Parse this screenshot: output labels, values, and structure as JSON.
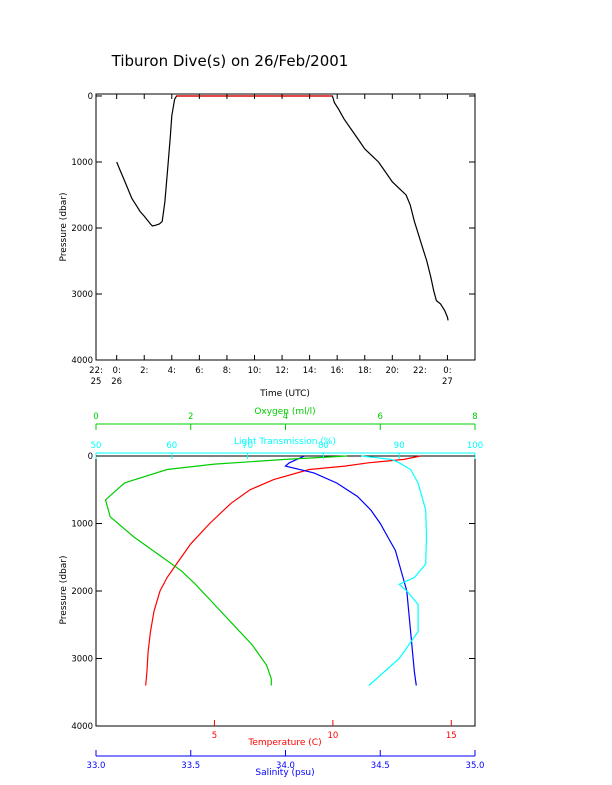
{
  "title": "Tiburon Dive(s) on 26/Feb/2001",
  "colors": {
    "axis": "#000000",
    "temperature": "#ff0000",
    "salinity": "#0000ff",
    "oxygen": "#00cc00",
    "light": "#00ffff"
  },
  "chart_data": [
    {
      "type": "line",
      "name": "pressure-time",
      "xlabel": "Time (UTC)",
      "ylabel": "Pressure (dbar)",
      "xlim": [
        22.5,
        50.0
      ],
      "ylim": [
        4000,
        -30
      ],
      "x_ticks": [
        {
          "x": 22.5,
          "l1": "22:",
          "l2": "25"
        },
        {
          "x": 24,
          "l1": "0:",
          "l2": "26"
        },
        {
          "x": 26,
          "l1": "2:",
          "l2": ""
        },
        {
          "x": 28,
          "l1": "4:",
          "l2": ""
        },
        {
          "x": 30,
          "l1": "6:",
          "l2": ""
        },
        {
          "x": 32,
          "l1": "8:",
          "l2": ""
        },
        {
          "x": 34,
          "l1": "10:",
          "l2": ""
        },
        {
          "x": 36,
          "l1": "12:",
          "l2": ""
        },
        {
          "x": 38,
          "l1": "14:",
          "l2": ""
        },
        {
          "x": 40,
          "l1": "16:",
          "l2": ""
        },
        {
          "x": 42,
          "l1": "18:",
          "l2": ""
        },
        {
          "x": 44,
          "l1": "20:",
          "l2": ""
        },
        {
          "x": 46,
          "l1": "22:",
          "l2": ""
        },
        {
          "x": 48,
          "l1": "0:",
          "l2": "27"
        }
      ],
      "y_ticks": [
        0,
        1000,
        2000,
        3000,
        4000
      ],
      "series": [
        {
          "color": "#000000",
          "points": [
            [
              24.0,
              1000
            ],
            [
              24.2,
              1100
            ],
            [
              24.5,
              1250
            ],
            [
              24.8,
              1400
            ],
            [
              25.1,
              1550
            ],
            [
              25.4,
              1650
            ],
            [
              25.7,
              1750
            ],
            [
              26.0,
              1820
            ],
            [
              26.3,
              1900
            ],
            [
              26.5,
              1950
            ],
            [
              26.6,
              1970
            ],
            [
              26.8,
              1960
            ],
            [
              27.1,
              1940
            ],
            [
              27.3,
              1900
            ],
            [
              27.5,
              1600
            ],
            [
              27.7,
              1100
            ],
            [
              27.9,
              600
            ],
            [
              28.0,
              300
            ],
            [
              28.2,
              50
            ],
            [
              28.35,
              0
            ],
            [
              29,
              0
            ],
            [
              33,
              0
            ],
            [
              36,
              0
            ],
            [
              39.5,
              0
            ],
            [
              39.65,
              0
            ],
            [
              39.8,
              100
            ],
            [
              40.1,
              200
            ],
            [
              40.5,
              350
            ],
            [
              41.0,
              500
            ],
            [
              41.5,
              650
            ],
            [
              42.0,
              800
            ],
            [
              42.5,
              900
            ],
            [
              43.0,
              1000
            ],
            [
              43.5,
              1150
            ],
            [
              44.0,
              1300
            ],
            [
              44.5,
              1400
            ],
            [
              45.0,
              1500
            ],
            [
              45.3,
              1650
            ],
            [
              45.6,
              1900
            ],
            [
              45.9,
              2100
            ],
            [
              46.2,
              2300
            ],
            [
              46.5,
              2500
            ],
            [
              46.8,
              2750
            ],
            [
              47.0,
              2950
            ],
            [
              47.2,
              3100
            ],
            [
              47.5,
              3150
            ],
            [
              47.8,
              3250
            ],
            [
              48.0,
              3350
            ],
            [
              48.05,
              3400
            ]
          ]
        },
        {
          "color": "#ff0000",
          "points": [
            [
              28.35,
              0
            ],
            [
              29,
              0
            ],
            [
              33,
              0
            ],
            [
              36,
              0
            ],
            [
              39.65,
              0
            ]
          ]
        }
      ]
    },
    {
      "type": "line",
      "name": "profiles",
      "ylabel": "Pressure (dbar)",
      "ylim": [
        4000,
        0
      ],
      "y_ticks": [
        0,
        1000,
        2000,
        3000,
        4000
      ],
      "axes": {
        "oxygen": {
          "label": "Oxygen (ml/l)",
          "range": [
            0,
            8
          ],
          "ticks": [
            0,
            2,
            4,
            6,
            8
          ],
          "side": "top-outer"
        },
        "light": {
          "label": "Light Transmission (%)",
          "range": [
            50,
            100
          ],
          "ticks": [
            50,
            60,
            70,
            80,
            90,
            100
          ],
          "side": "top-inner"
        },
        "temperature": {
          "label": "Temperature (C)",
          "range": [
            0,
            16
          ],
          "ticks": [
            5,
            10,
            15
          ],
          "side": "bottom-inner"
        },
        "salinity": {
          "label": "Salinity (psu)",
          "range": [
            33.0,
            35.0
          ],
          "ticks": [
            "33.0",
            "33.5",
            "34.0",
            "34.5",
            "35.0"
          ],
          "side": "bottom-outer"
        }
      },
      "series": [
        {
          "axis": "temperature",
          "color": "#ff0000",
          "points": [
            [
              13.7,
              0
            ],
            [
              13.0,
              50
            ],
            [
              11.5,
              100
            ],
            [
              10.5,
              150
            ],
            [
              9.0,
              200
            ],
            [
              7.5,
              350
            ],
            [
              6.5,
              500
            ],
            [
              5.7,
              700
            ],
            [
              4.8,
              1000
            ],
            [
              4.0,
              1300
            ],
            [
              3.4,
              1600
            ],
            [
              3.0,
              1800
            ],
            [
              2.7,
              2000
            ],
            [
              2.45,
              2300
            ],
            [
              2.3,
              2600
            ],
            [
              2.2,
              2900
            ],
            [
              2.15,
              3200
            ],
            [
              2.1,
              3400
            ]
          ]
        },
        {
          "axis": "salinity",
          "color": "#0000ff",
          "points": [
            [
              34.1,
              0
            ],
            [
              34.02,
              100
            ],
            [
              34.0,
              150
            ],
            [
              34.15,
              250
            ],
            [
              34.27,
              400
            ],
            [
              34.38,
              600
            ],
            [
              34.45,
              800
            ],
            [
              34.5,
              1000
            ],
            [
              34.54,
              1200
            ],
            [
              34.58,
              1400
            ],
            [
              34.6,
              1600
            ],
            [
              34.62,
              1800
            ],
            [
              34.64,
              2000
            ],
            [
              34.65,
              2300
            ],
            [
              34.66,
              2600
            ],
            [
              34.67,
              2900
            ],
            [
              34.68,
              3200
            ],
            [
              34.69,
              3400
            ]
          ]
        },
        {
          "axis": "oxygen",
          "color": "#00cc00",
          "points": [
            [
              5.3,
              0
            ],
            [
              4.0,
              50
            ],
            [
              2.5,
              120
            ],
            [
              1.5,
              200
            ],
            [
              0.6,
              400
            ],
            [
              0.2,
              650
            ],
            [
              0.3,
              900
            ],
            [
              0.8,
              1200
            ],
            [
              1.4,
              1500
            ],
            [
              1.8,
              1700
            ],
            [
              2.1,
              1900
            ],
            [
              2.5,
              2200
            ],
            [
              2.9,
              2500
            ],
            [
              3.3,
              2800
            ],
            [
              3.6,
              3100
            ],
            [
              3.7,
              3300
            ],
            [
              3.7,
              3400
            ]
          ]
        },
        {
          "axis": "light",
          "color": "#00ffff",
          "points": [
            [
              85,
              0
            ],
            [
              89,
              50
            ],
            [
              90,
              100
            ],
            [
              91.5,
              200
            ],
            [
              92.5,
              400
            ],
            [
              93,
              600
            ],
            [
              93.5,
              800
            ],
            [
              93.6,
              1200
            ],
            [
              93.5,
              1600
            ],
            [
              92,
              1800
            ],
            [
              90,
              1900
            ],
            [
              91,
              2000
            ],
            [
              92.5,
              2200
            ],
            [
              92.5,
              2600
            ],
            [
              90,
              3000
            ],
            [
              88,
              3200
            ],
            [
              86,
              3400
            ]
          ]
        }
      ]
    }
  ]
}
